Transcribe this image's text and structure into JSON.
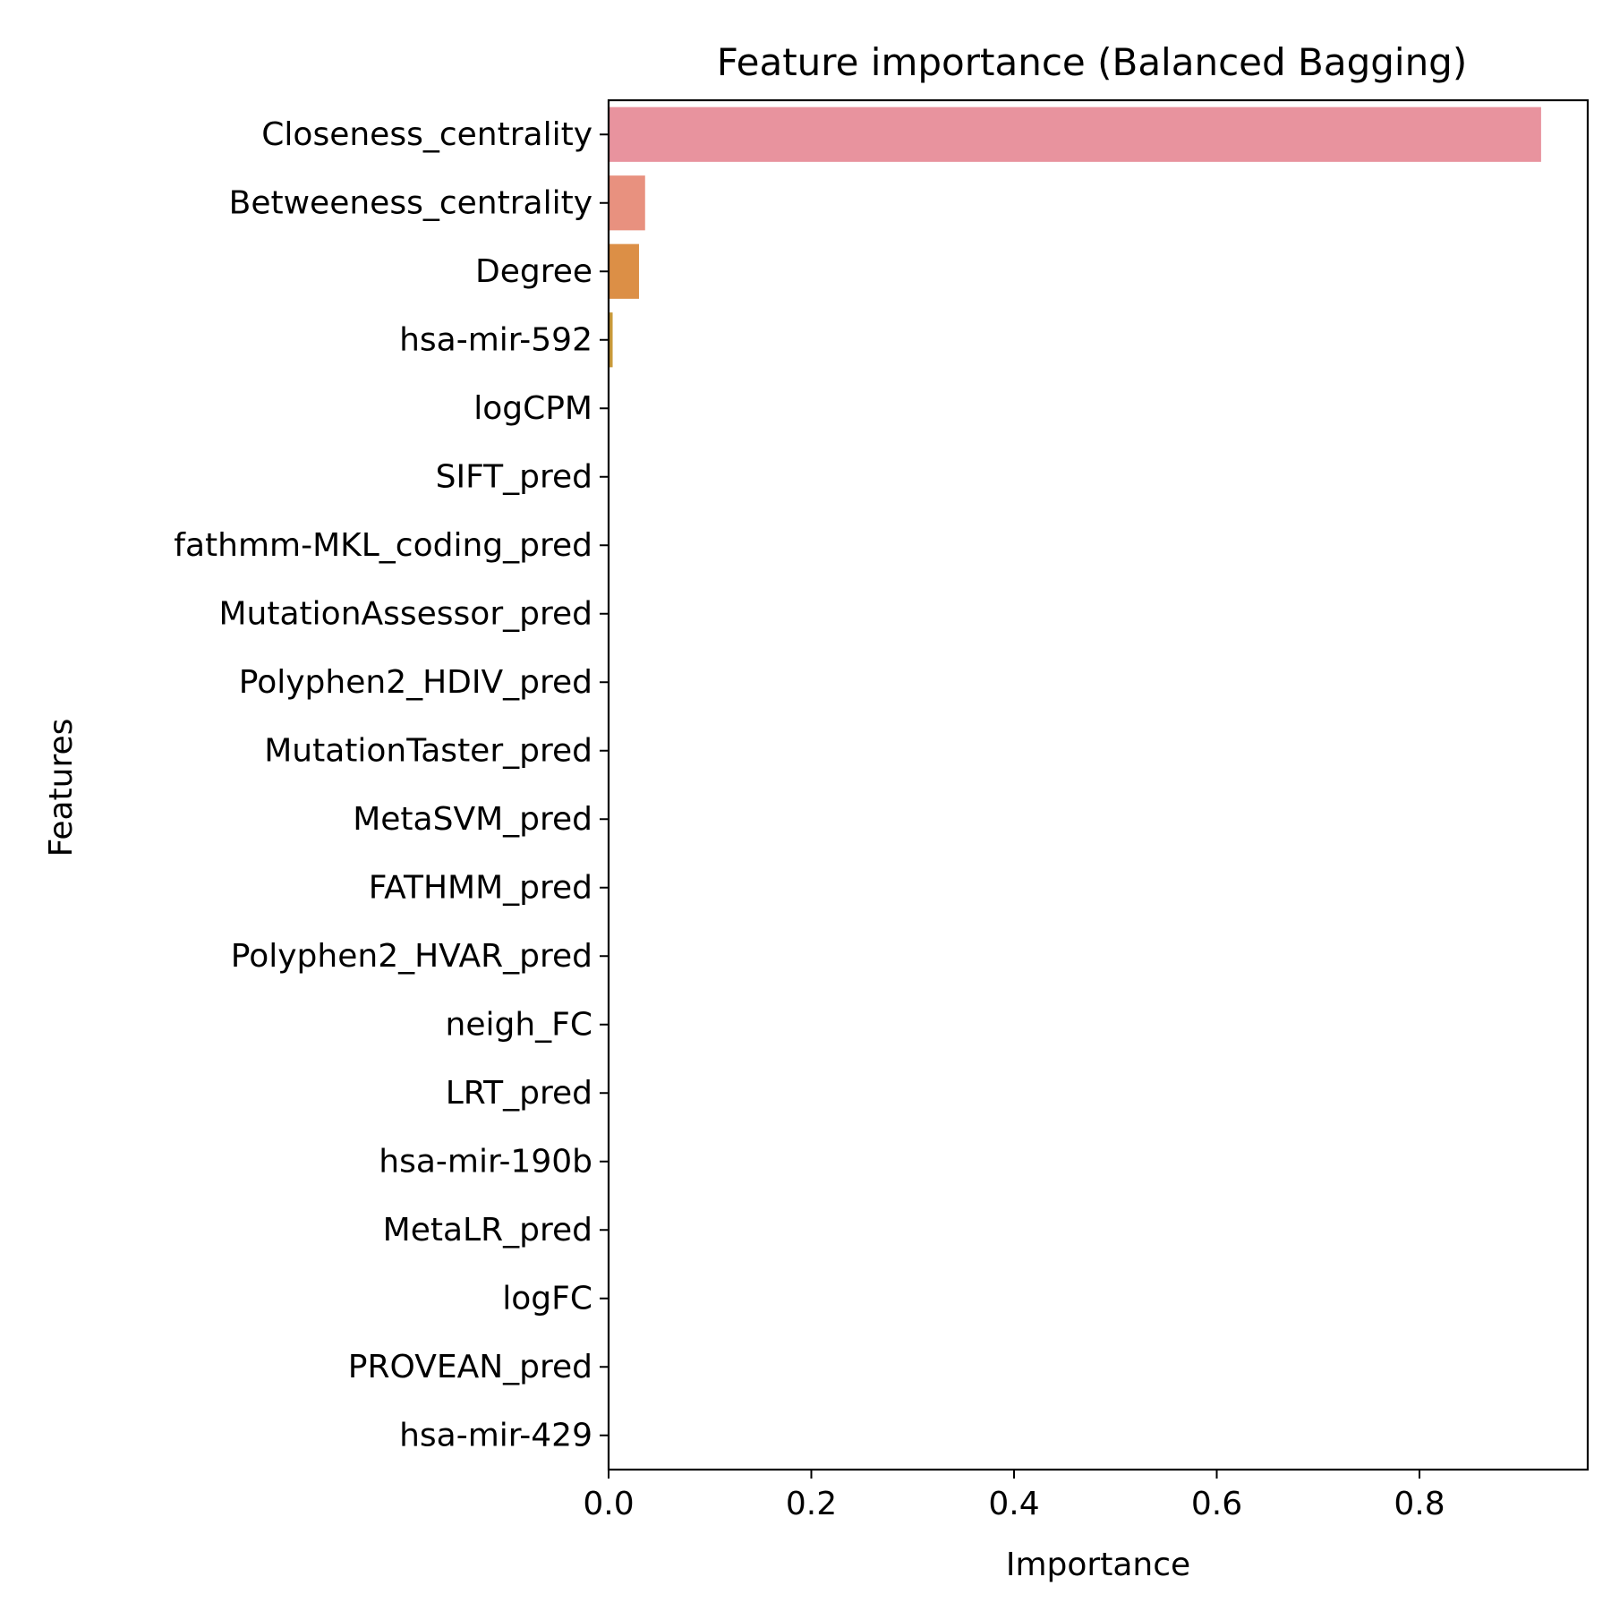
{
  "chart_data": {
    "type": "bar",
    "orientation": "horizontal",
    "title": "Feature importance (Balanced Bagging)",
    "xlabel": "Importance",
    "ylabel": "Features",
    "xlim": [
      0,
      0.966
    ],
    "xticks": [
      0.0,
      0.2,
      0.4,
      0.6,
      0.8
    ],
    "xtick_labels": [
      "0.0",
      "0.2",
      "0.4",
      "0.6",
      "0.8"
    ],
    "grid": false,
    "legend": "none",
    "categories": [
      "Closeness_centrality",
      "Betweeness_centrality",
      "Degree",
      "hsa-mir-592",
      "logCPM",
      "SIFT_pred",
      "fathmm-MKL_coding_pred",
      "MutationAssessor_pred",
      "Polyphen2_HDIV_pred",
      "MutationTaster_pred",
      "MetaSVM_pred",
      "FATHMM_pred",
      "Polyphen2_HVAR_pred",
      "neigh_FC",
      "LRT_pred",
      "hsa-mir-190b",
      "MetaLR_pred",
      "logFC",
      "PROVEAN_pred",
      "hsa-mir-429"
    ],
    "values": [
      0.92,
      0.036,
      0.03,
      0.004,
      0,
      0,
      0,
      0,
      0,
      0,
      0,
      0,
      0,
      0,
      0,
      0,
      0,
      0,
      0,
      0
    ],
    "colors": [
      "#e8939e",
      "#e8917f",
      "#dc8f46",
      "#c99a3a",
      "#b0a03a",
      "#9aa63c",
      "#7aad3a",
      "#4bb148",
      "#3fb17a",
      "#3fae93",
      "#3eaba3",
      "#3ea8b2",
      "#43a3c3",
      "#4f9cd4",
      "#7c93e0",
      "#a38ae4",
      "#c17fe3",
      "#dc72d6",
      "#e574bd",
      "#e686a9"
    ]
  }
}
